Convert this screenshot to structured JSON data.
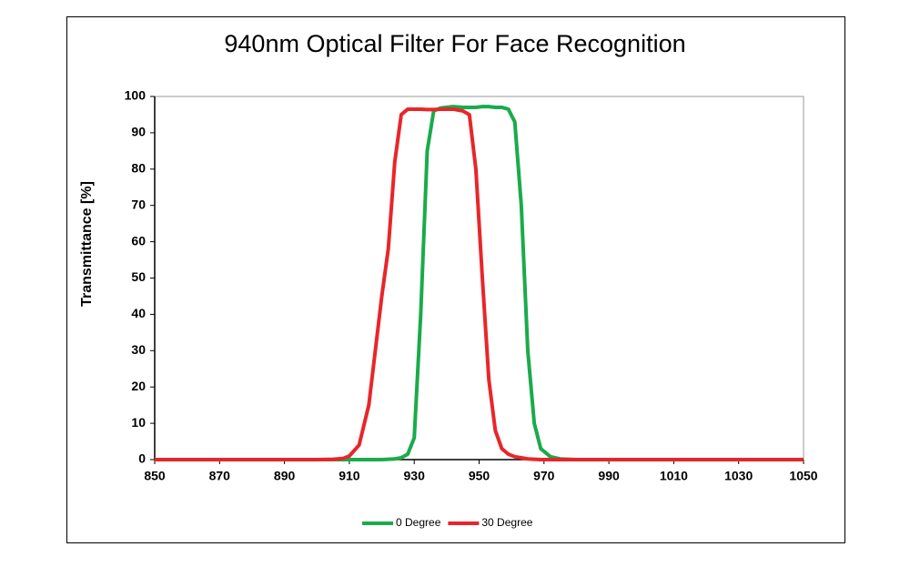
{
  "chart_data": {
    "type": "line",
    "title": "940nm Optical Filter For Face Recognition",
    "y_label": "Transmittance [%]",
    "x": [
      850,
      900,
      905,
      908,
      910,
      913,
      916,
      918,
      920,
      922,
      924,
      926,
      928,
      930,
      932,
      934,
      936,
      938,
      942,
      945,
      947,
      949,
      951,
      953,
      955,
      957,
      959,
      961,
      963,
      965,
      967,
      969,
      972,
      975,
      980,
      1050
    ],
    "series": [
      {
        "name": "0 Degree",
        "color": "#1aab4a",
        "values": [
          0,
          0,
          0,
          0,
          0,
          0,
          0,
          0,
          0,
          0.1,
          0.2,
          0.5,
          1.5,
          6,
          40,
          85,
          96,
          96.8,
          97.2,
          97,
          97,
          97,
          97.2,
          97.2,
          97,
          97,
          96.5,
          93,
          70,
          30,
          10,
          3,
          0.8,
          0.2,
          0,
          0
        ]
      },
      {
        "name": "30 Degree",
        "color": "#e8262a",
        "values": [
          0,
          0,
          0.1,
          0.3,
          1,
          4,
          15,
          30,
          45,
          58,
          82,
          95,
          96.5,
          96.5,
          96.5,
          96.4,
          96.4,
          96.5,
          96.5,
          96,
          95,
          80,
          50,
          22,
          8,
          3,
          1.5,
          0.8,
          0.5,
          0.2,
          0.1,
          0,
          0,
          0,
          0,
          0
        ]
      }
    ],
    "xlim": [
      850,
      1050
    ],
    "xticks": [
      850,
      870,
      890,
      910,
      930,
      950,
      970,
      990,
      1010,
      1030,
      1050
    ],
    "ylim": [
      0,
      100
    ],
    "yticks": [
      0,
      10,
      20,
      30,
      40,
      50,
      60,
      70,
      80,
      90,
      100
    ],
    "legend": "bottom"
  }
}
